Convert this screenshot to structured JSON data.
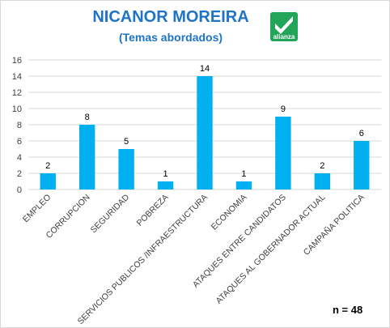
{
  "title": "NICANOR MOREIRA",
  "subtitle": "(Temas abordados)",
  "logo": {
    "text": "alianza",
    "color": "#23a559",
    "icon": "checkmark-logo-icon"
  },
  "footnote": "n = 48",
  "colors": {
    "bar": "#00b0f0",
    "grid": "#d9d9d9",
    "title": "#1f74c4"
  },
  "chart_data": {
    "type": "bar",
    "categories": [
      "EMPLEO",
      "CORRUPCION",
      "SEGURIDAD",
      "POBREZA",
      "SERVICIOS PUBLICOS /INFRAESTRUCTURA",
      "ECONOMIA",
      "ATAQUES ENTRE CANDIDATOS",
      "ATAQUES AL GOBERNADOR ACTUAL",
      "CAMPAÑA POLITICA"
    ],
    "values": [
      2,
      8,
      5,
      1,
      14,
      1,
      9,
      2,
      6
    ],
    "ylim": [
      0,
      16
    ],
    "yticks": [
      0,
      2,
      4,
      6,
      8,
      10,
      12,
      14,
      16
    ],
    "grid": true,
    "xlabel": "",
    "ylabel": ""
  }
}
